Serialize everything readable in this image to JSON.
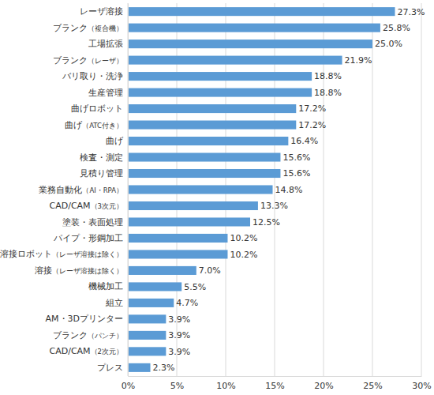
{
  "chart_data": {
    "type": "bar",
    "orientation": "horizontal",
    "categories": [
      "レーザ溶接",
      "ブランク（複合機）",
      "工場拡張",
      "ブランク（レーザ）",
      "バリ取り・洗浄",
      "生産管理",
      "曲げロボット",
      "曲げ（ATC付き）",
      "曲げ",
      "検査・測定",
      "見積り管理",
      "業務自動化（AI・RPA）",
      "CAD/CAM（3次元）",
      "塗装・表面処理",
      "パイプ・形鋼加工",
      "溶接ロボット（レーザ溶接は除く）",
      "溶接（レーザ溶接は除く）",
      "機械加工",
      "組立",
      "AM・3Dプリンター",
      "ブランク（パンチ）",
      "CAD/CAM（2次元）",
      "プレス"
    ],
    "values": [
      27.3,
      25.8,
      25.0,
      21.9,
      18.8,
      18.8,
      17.2,
      17.2,
      16.4,
      15.6,
      15.6,
      14.8,
      13.3,
      12.5,
      10.2,
      10.2,
      7.0,
      5.5,
      4.7,
      3.9,
      3.9,
      3.9,
      2.3
    ],
    "value_labels": [
      "27.3%",
      "25.8%",
      "25.0%",
      "21.9%",
      "18.8%",
      "18.8%",
      "17.2%",
      "17.2%",
      "16.4%",
      "15.6%",
      "15.6%",
      "14.8%",
      "13.3%",
      "12.5%",
      "10.2%",
      "10.2%",
      "7.0%",
      "5.5%",
      "4.7%",
      "3.9%",
      "3.9%",
      "3.9%",
      "2.3%"
    ],
    "color": "#5b9bd5",
    "xlim": [
      0,
      30
    ],
    "xticks": [
      {
        "value": 0,
        "label": "0%"
      },
      {
        "value": 5,
        "label": "5%"
      },
      {
        "value": 10,
        "label": "10%"
      },
      {
        "value": 15,
        "label": "15%"
      },
      {
        "value": 20,
        "label": "20%"
      },
      {
        "value": 25,
        "label": "25%"
      },
      {
        "value": 30,
        "label": "30%"
      }
    ],
    "grid": true,
    "data_labels": true
  }
}
